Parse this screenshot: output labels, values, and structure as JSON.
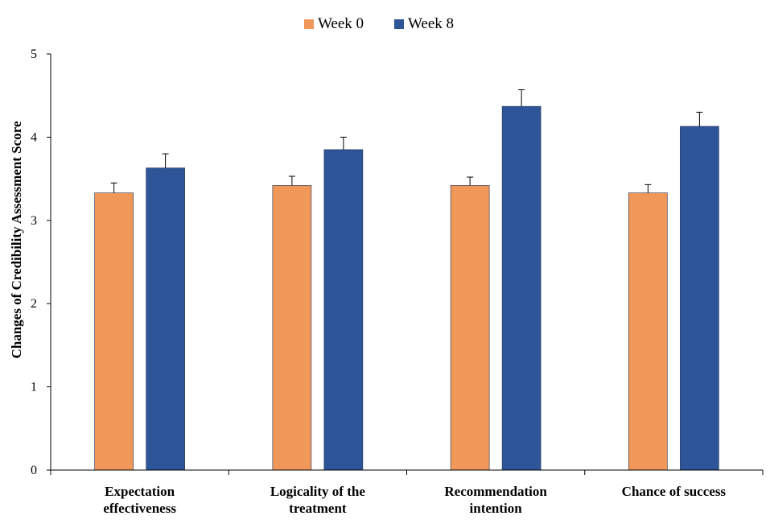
{
  "chart_data": {
    "type": "bar",
    "categories": [
      [
        "Expectation",
        "effectiveness"
      ],
      [
        "Logicality of the",
        "treatment"
      ],
      [
        "Recommendation",
        "intention"
      ],
      [
        "Chance of success"
      ]
    ],
    "series": [
      {
        "name": "Week 0",
        "color": "#f0985a",
        "values": [
          3.33,
          3.42,
          3.42,
          3.33
        ],
        "errors": [
          0.12,
          0.11,
          0.1,
          0.1
        ]
      },
      {
        "name": "Week 8",
        "color": "#2e5597",
        "values": [
          3.63,
          3.85,
          4.37,
          4.13
        ],
        "errors": [
          0.17,
          0.15,
          0.2,
          0.17
        ]
      }
    ],
    "ylabel": "Changes of Credibility Assessment Score",
    "ylim": [
      0,
      5
    ],
    "yticks": [
      0,
      1,
      2,
      3,
      4,
      5
    ],
    "legend_position": "top-center",
    "grid": false
  }
}
